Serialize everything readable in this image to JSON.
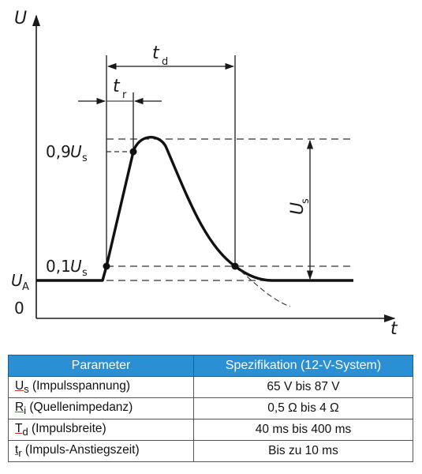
{
  "diagram": {
    "axis_y_label": "U",
    "axis_x_label": "t",
    "td_label": "t",
    "td_sub": "d",
    "tr_label": "t",
    "tr_sub": "r",
    "us_label": "U",
    "us_sub": "s",
    "level_09": "0,9",
    "level_09_sym": "U",
    "level_09_sub": "s",
    "level_01": "0,1",
    "level_01_sym": "U",
    "level_01_sub": "s",
    "ua_label": "U",
    "ua_sub": "A",
    "zero_label": "0"
  },
  "table": {
    "headers": [
      "Parameter",
      "Spezifikation (12-V-System)"
    ],
    "rows": [
      {
        "sym": "U",
        "sub": "s",
        "desc": " (Impulsspannung)",
        "value": "65 V bis 87 V"
      },
      {
        "sym": "R",
        "sub": "i",
        "desc": " (Quellenimpedanz)",
        "value": "0,5 Ω bis 4 Ω"
      },
      {
        "sym": "T",
        "sub": "d",
        "desc": " (Impulsbreite)",
        "value": "40 ms bis 400 ms"
      },
      {
        "sym": "t",
        "sub": "r",
        "desc": " (Impuls-Anstiegszeit)",
        "value": "Bis zu 10 ms"
      }
    ]
  },
  "colors": {
    "header_bg": "#2b8fd4",
    "header_text": "#ffffff",
    "underline": "#c0392b"
  }
}
